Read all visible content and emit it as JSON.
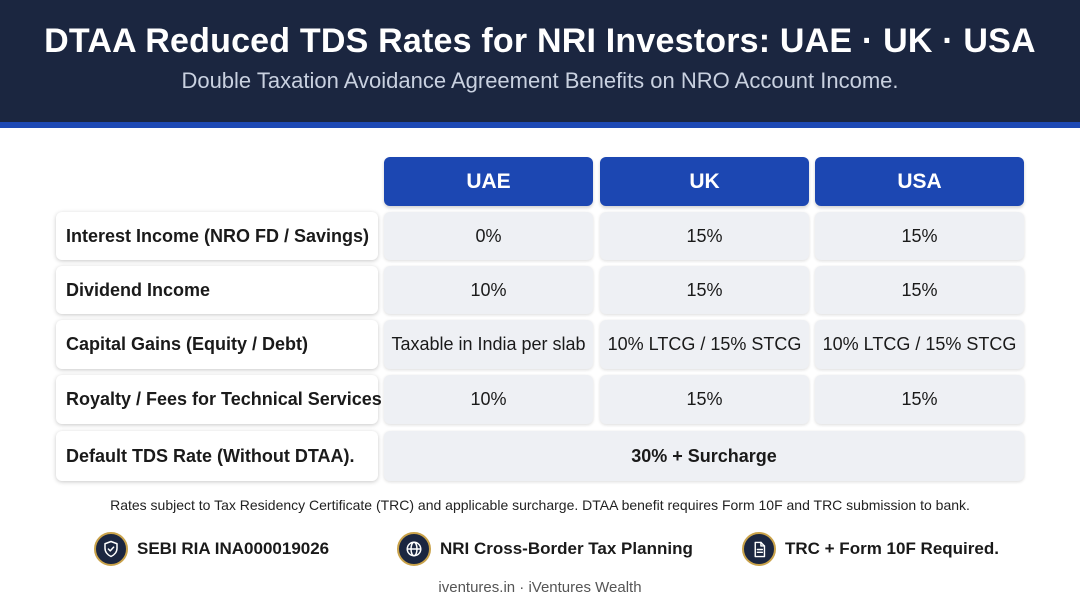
{
  "header": {
    "title": "DTAA Reduced TDS Rates for NRI Investors: UAE · UK · USA",
    "subtitle": "Double Taxation Avoidance Agreement Benefits on NRO Account Income."
  },
  "table": {
    "columns": [
      "UAE",
      "UK",
      "USA"
    ],
    "rows": [
      {
        "label": "Interest Income (NRO FD / Savings)",
        "values": [
          "0%",
          "15%",
          "15%"
        ]
      },
      {
        "label": "Dividend Income",
        "values": [
          "10%",
          "15%",
          "15%"
        ]
      },
      {
        "label": "Capital Gains (Equity / Debt)",
        "values": [
          "Taxable in India per slab",
          "10% LTCG / 15% STCG",
          "10% LTCG / 15% STCG"
        ]
      },
      {
        "label": "Royalty / Fees for Technical Services",
        "values": [
          "10%",
          "15%",
          "15%"
        ]
      },
      {
        "label": "Default TDS Rate (Without DTAA).",
        "span_value": "30% + Surcharge"
      }
    ]
  },
  "footnote": "Rates subject to Tax Residency Certificate (TRC) and applicable surcharge. DTAA benefit requires Form 10F and TRC submission to bank.",
  "badges": [
    {
      "icon": "shield-check-icon",
      "label": "SEBI RIA INA000019026"
    },
    {
      "icon": "globe-icon",
      "label": "NRI Cross-Border Tax Planning"
    },
    {
      "icon": "document-icon",
      "label": "TRC + Form 10F Required."
    }
  ],
  "credit": "iventures.in · iVentures Wealth",
  "colors": {
    "header_bg": "#1b2640",
    "accent_blue": "#1c47b2",
    "cell_bg": "#eef0f4",
    "badge_ring": "#c9a24a"
  }
}
